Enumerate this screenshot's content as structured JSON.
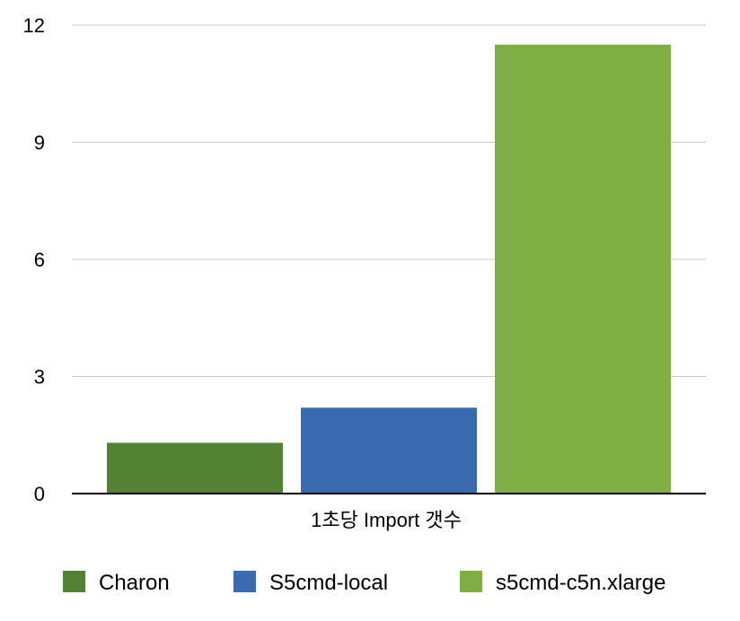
{
  "chart_data": {
    "type": "bar",
    "categories": [
      "1초당 Import 갯수"
    ],
    "series": [
      {
        "name": "Charon",
        "values": [
          1.3
        ],
        "color": "#548235"
      },
      {
        "name": "S5cmd-local",
        "values": [
          2.2
        ],
        "color": "#3A6BB0"
      },
      {
        "name": "s5cmd-c5n.xlarge",
        "values": [
          11.5
        ],
        "color": "#7FAE45"
      }
    ],
    "ylim": [
      0,
      12
    ],
    "yticks": [
      0,
      3,
      6,
      9,
      12
    ],
    "grid": true,
    "legend": "bottom"
  }
}
